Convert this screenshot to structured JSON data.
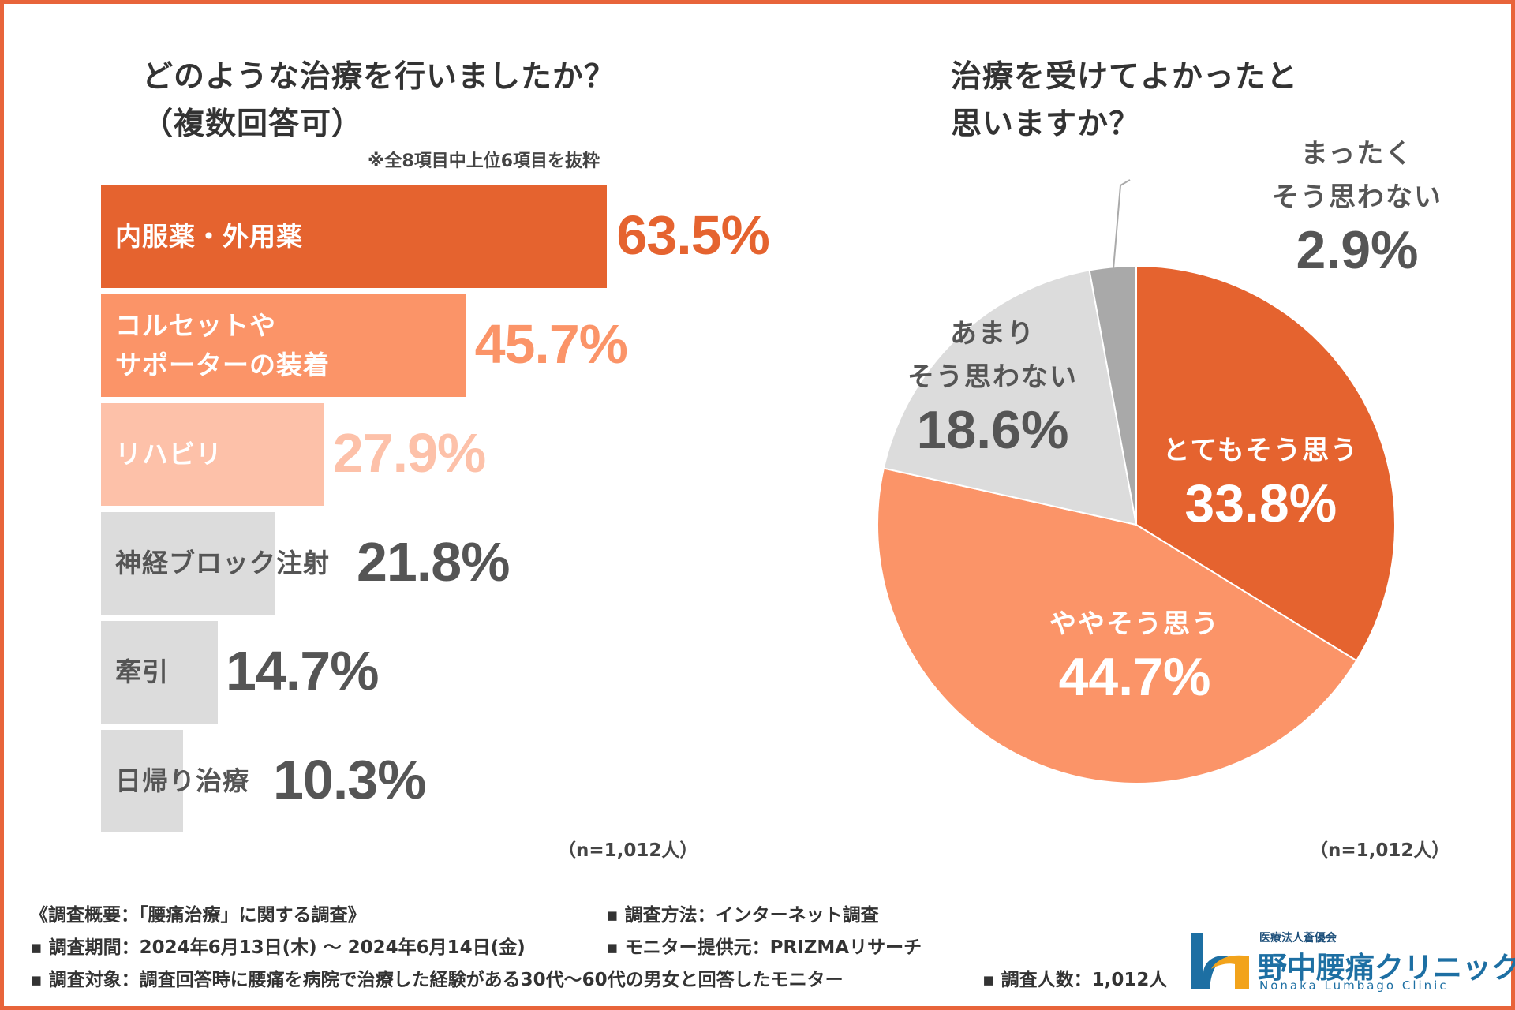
{
  "left_chart": {
    "title_line1": "どのような治療を行いましたか？",
    "title_line2": "（複数回答可）",
    "note": "※全8項目中上位6項目を抜粋",
    "n_label": "（n=1,012人）"
  },
  "right_chart": {
    "title_line1": "治療を受けてよかったと",
    "title_line2": "思いますか？",
    "n_label": "（n=1,012人）"
  },
  "chart_data": [
    {
      "type": "bar",
      "orientation": "horizontal",
      "title": "どのような治療を行いましたか？（複数回答可）",
      "categories": [
        "内服薬・外用薬",
        "コルセットやサポーターの装着",
        "リハビリ",
        "神経ブロック注射",
        "牽引",
        "日帰り治療"
      ],
      "values": [
        63.5,
        45.7,
        27.9,
        21.8,
        14.7,
        10.3
      ],
      "value_labels": [
        "63.5%",
        "45.7%",
        "27.9%",
        "21.8%",
        "14.7%",
        "10.3%"
      ],
      "label_lines": [
        [
          "内服薬・外用薬"
        ],
        [
          "コルセットや",
          "サポーターの装着"
        ],
        [
          "リハビリ"
        ],
        [
          "神経ブロック注射"
        ],
        [
          "牽引"
        ],
        [
          "日帰り治療"
        ]
      ],
      "bar_colors": [
        "#e5632f",
        "#fb9468",
        "#fdc1a9",
        "#dcdcdc",
        "#dcdcdc",
        "#dcdcdc"
      ],
      "label_colors": [
        "#ffffff",
        "#ffffff",
        "#ffffff",
        "#555555",
        "#555555",
        "#555555"
      ],
      "value_colors": [
        "#e5632f",
        "#fb9468",
        "#fdc1a9",
        "#555555",
        "#555555",
        "#555555"
      ],
      "xlim": [
        0,
        100
      ]
    },
    {
      "type": "pie",
      "title": "治療を受けてよかったと思いますか？",
      "categories": [
        "とてもそう思う",
        "ややそう思う",
        "あまりそう思わない",
        "まったくそう思わない"
      ],
      "values": [
        33.8,
        44.7,
        18.6,
        2.9
      ],
      "value_labels": [
        "33.8%",
        "44.7%",
        "18.6%",
        "2.9%"
      ],
      "label_lines": [
        [
          "とてもそう思う"
        ],
        [
          "ややそう思う"
        ],
        [
          "あまり",
          "そう思わない"
        ],
        [
          "まったく",
          "そう思わない"
        ]
      ],
      "colors": [
        "#e5632f",
        "#fb9468",
        "#dcdcdc",
        "#a9a9a9"
      ],
      "text_colors": [
        "#ffffff",
        "#ffffff",
        "#555555",
        "#555555"
      ]
    }
  ],
  "footer": {
    "overview": "《調査概要：「腰痛治療」に関する調査》",
    "period": "▪ 調査期間：2024年6月13日(木) ～ 2024年6月14日(金)",
    "target": "▪ 調査対象：調査回答時に腰痛を病院で治療した経験がある30代～60代の男女と回答したモニター",
    "method": "▪ 調査方法：インターネット調査",
    "provider": "▪ モニター提供元：PRIZMAリサーチ",
    "count": "▪ 調査人数：1,012人"
  },
  "logo": {
    "corp": "医療法人蒼優会",
    "name": "野中腰痛クリニック",
    "name_en": "Nonaka Lumbago Clinic"
  },
  "colors": {
    "accent": "#e5632f",
    "border": "#e8643a"
  }
}
